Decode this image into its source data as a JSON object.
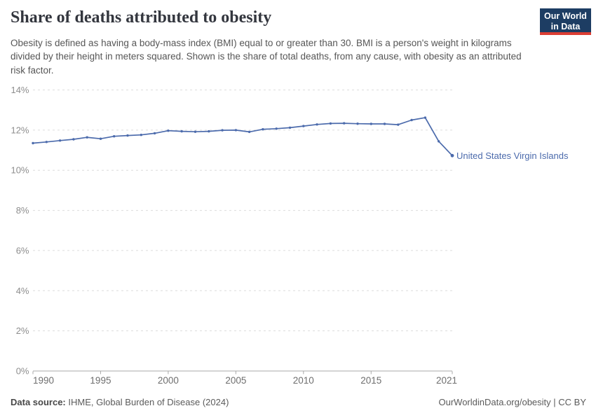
{
  "header": {
    "title": "Share of deaths attributed to obesity",
    "subtitle": "Obesity is defined as having a body-mass index (BMI) equal to or greater than 30. BMI is a person's weight in kilograms divided by their height in meters squared. Shown is the share of total deaths, from any cause, with obesity as an attributed risk factor.",
    "logo": {
      "line1": "Our World",
      "line2": "in Data",
      "bg": "#1d3d63",
      "bar": "#dc3e34"
    }
  },
  "chart_data": {
    "type": "line",
    "title": "Share of deaths attributed to obesity",
    "xlabel": "",
    "ylabel": "",
    "xlim": [
      1990,
      2021
    ],
    "ylim": [
      0,
      14
    ],
    "x_ticks": [
      1990,
      1995,
      2000,
      2005,
      2010,
      2015,
      2021
    ],
    "y_ticks": [
      0,
      2,
      4,
      6,
      8,
      10,
      12,
      14
    ],
    "y_tick_suffix": "%",
    "grid": "horizontal-dashed",
    "legend_position": "end-of-line-label",
    "series": [
      {
        "name": "United States Virgin Islands",
        "color": "#4c6bac",
        "x": [
          1990,
          1991,
          1992,
          1993,
          1994,
          1995,
          1996,
          1997,
          1998,
          1999,
          2000,
          2001,
          2002,
          2003,
          2004,
          2005,
          2006,
          2007,
          2008,
          2009,
          2010,
          2011,
          2012,
          2013,
          2014,
          2015,
          2016,
          2017,
          2018,
          2019,
          2020,
          2021
        ],
        "y": [
          11.35,
          11.41,
          11.48,
          11.54,
          11.64,
          11.57,
          11.69,
          11.73,
          11.76,
          11.84,
          11.97,
          11.94,
          11.92,
          11.94,
          11.99,
          12.0,
          11.91,
          12.04,
          12.07,
          12.12,
          12.2,
          12.28,
          12.33,
          12.34,
          12.32,
          12.31,
          12.31,
          12.27,
          12.5,
          12.62,
          11.44,
          10.73
        ]
      }
    ]
  },
  "footer": {
    "datasource_label": "Data source:",
    "datasource_value": "IHME, Global Burden of Disease (2024)",
    "rights": "OurWorldinData.org/obesity | CC BY"
  }
}
